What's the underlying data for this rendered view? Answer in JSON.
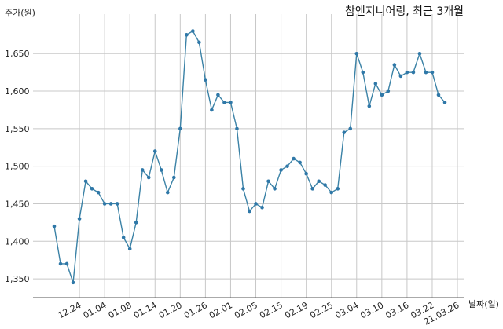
{
  "chart_data": {
    "type": "line",
    "title": "참엔지니어링, 최근 3개월",
    "xlabel": "날짜(일)",
    "ylabel": "주가(원)",
    "ylim": [
      1325,
      1690
    ],
    "y_ticks": [
      1350,
      1400,
      1450,
      1500,
      1550,
      1600,
      1650
    ],
    "y_tick_labels": [
      "1,350",
      "1,400",
      "1,450",
      "1,500",
      "1,550",
      "1,600",
      "1,650"
    ],
    "x_tick_labels": [
      "12.24",
      "01.04",
      "01.08",
      "01.14",
      "01.20",
      "01.26",
      "02.01",
      "02.05",
      "02.15",
      "02.19",
      "02.25",
      "03.04",
      "03.10",
      "03.16",
      "03.22",
      "21.03.26"
    ],
    "x_tick_index": [
      4,
      8,
      12,
      16,
      20,
      24,
      28,
      32,
      36,
      40,
      44,
      48,
      52,
      56,
      60,
      64
    ],
    "grid": true,
    "series": [
      {
        "color": "#2f78a8",
        "values": [
          1420,
          1370,
          1370,
          1345,
          1430,
          1480,
          1470,
          1465,
          1450,
          1450,
          1450,
          1405,
          1390,
          1425,
          1495,
          1485,
          1520,
          1495,
          1465,
          1485,
          1550,
          1675,
          1680,
          1665,
          1615,
          1575,
          1595,
          1585,
          1585,
          1550,
          1470,
          1440,
          1450,
          1445,
          1480,
          1470,
          1495,
          1500,
          1510,
          1505,
          1490,
          1470,
          1480,
          1475,
          1465,
          1470,
          1545,
          1550,
          1650,
          1625,
          1580,
          1610,
          1595,
          1600,
          1635,
          1620,
          1625,
          1625,
          1650,
          1625,
          1625,
          1595,
          1585
        ]
      }
    ]
  }
}
